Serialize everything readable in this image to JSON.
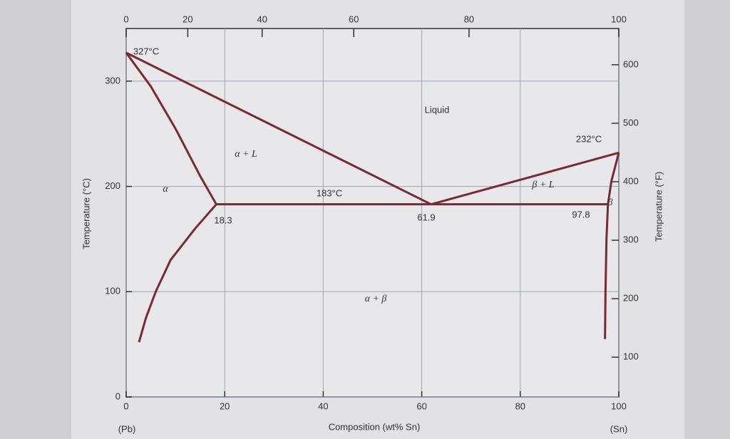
{
  "chart_data": {
    "type": "line",
    "xlabel": "Composition (wt% Sn)",
    "ylabel": "Temperature (°C)",
    "y2label": "Temperature (°F)",
    "xlim": [
      0,
      100
    ],
    "xticks": [
      0,
      20,
      40,
      60,
      80,
      100
    ],
    "x2ticks": [
      {
        "value": 0,
        "label": "0"
      },
      {
        "value": 12.5,
        "label": "20"
      },
      {
        "value": 27.6,
        "label": "40"
      },
      {
        "value": 46.2,
        "label": "60"
      },
      {
        "value": 69.6,
        "label": "80"
      },
      {
        "value": 100,
        "label": "100"
      }
    ],
    "ylim": [
      0,
      350
    ],
    "yticks": [
      0,
      100,
      200,
      300
    ],
    "y2lim": [
      32,
      662
    ],
    "y2ticks": [
      100,
      200,
      300,
      400,
      500,
      600
    ],
    "grid": true,
    "series": [
      {
        "color": "#7a2a30",
        "x": [
          0,
          61.9
        ],
        "values": [
          327,
          183
        ]
      },
      {
        "color": "#7a2a30",
        "x": [
          61.9,
          100
        ],
        "values": [
          183,
          232
        ]
      },
      {
        "color": "#7a2a30",
        "x": [
          0,
          5,
          10,
          15,
          18.3
        ],
        "values": [
          327,
          295,
          255,
          210,
          183
        ]
      },
      {
        "color": "#7a2a30",
        "x": [
          18.3,
          14,
          9,
          6,
          4,
          2.6
        ],
        "values": [
          183,
          160,
          130,
          100,
          75,
          52
        ]
      },
      {
        "color": "#7a2a30",
        "x": [
          18.3,
          97.8
        ],
        "values": [
          183,
          183
        ]
      },
      {
        "color": "#7a2a30",
        "x": [
          97.8,
          98.5,
          100
        ],
        "values": [
          183,
          205,
          232
        ]
      },
      {
        "color": "#7a2a30",
        "x": [
          97.8,
          97.5,
          97.3,
          97.2
        ],
        "values": [
          183,
          150,
          100,
          55
        ]
      }
    ],
    "annotations": [
      "327°C",
      "Liquid",
      "α + L",
      "α",
      "183°C",
      "18.3",
      "61.9",
      "97.8",
      "232°C",
      "β + L",
      "β",
      "α + β",
      "(Pb)",
      "(Sn)"
    ]
  }
}
